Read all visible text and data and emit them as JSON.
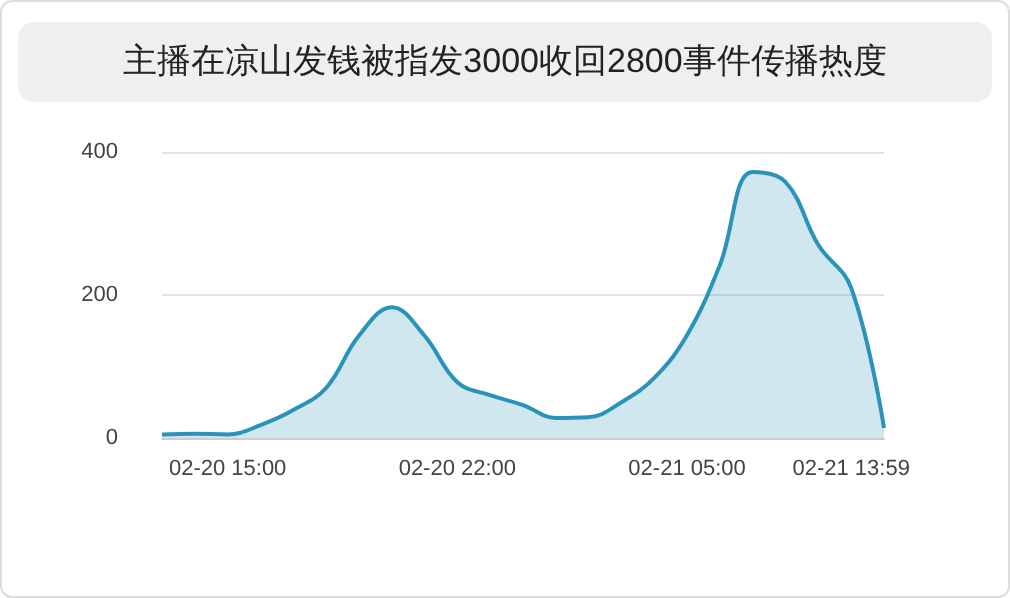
{
  "chart_data": {
    "type": "area",
    "title": "主播在凉山发钱被指发3000收回2800事件传播热度",
    "categories": [
      null,
      null,
      "02-20 15:00",
      null,
      null,
      null,
      null,
      null,
      null,
      "02-20 22:00",
      null,
      null,
      null,
      null,
      null,
      null,
      "02-21 05:00",
      null,
      null,
      null,
      null,
      "02-21 13:59",
      null
    ],
    "series": [
      {
        "color": "#2a93b9",
        "values": [
          5,
          6,
          5,
          18,
          39,
          70,
          143,
          183,
          143,
          78,
          60,
          46,
          28,
          29,
          50,
          84,
          144,
          242,
          372,
          358,
          270,
          210,
          14
        ]
      }
    ],
    "ylim": [
      0,
      400
    ],
    "yticks": [
      0,
      200,
      400
    ],
    "grid": "y",
    "marker": "none",
    "line_style": "solid"
  }
}
